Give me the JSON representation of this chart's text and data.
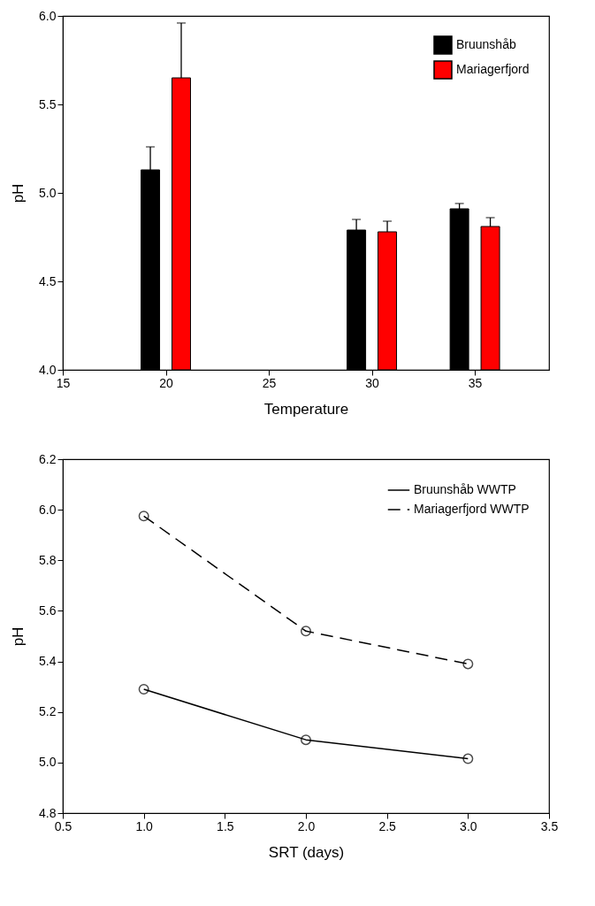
{
  "chart_data": [
    {
      "type": "bar",
      "xlabel": "Temperature",
      "ylabel": "pH",
      "xlim": [
        15,
        38.6
      ],
      "xticks": [
        15,
        20,
        25,
        30,
        35
      ],
      "ylim": [
        4,
        6
      ],
      "yticks": [
        {
          "value": 4,
          "label": "4.0"
        },
        4.5,
        {
          "value": 5,
          "label": "5.0"
        },
        5.5,
        {
          "value": 6,
          "label": "6.0"
        }
      ],
      "grid": false,
      "legend": "top right",
      "series": [
        {
          "name": "Bruunshåb",
          "color": "#000000",
          "x": [
            19.25,
            29.25,
            34.25
          ],
          "values": [
            5.13,
            4.79,
            4.91
          ],
          "errors": [
            [
              5.13,
              5.26
            ],
            [
              4.79,
              4.85
            ],
            [
              4.91,
              4.94
            ]
          ]
        },
        {
          "name": "Mariagerfjord",
          "color": "#ff0000",
          "x": [
            20.75,
            30.75,
            35.75
          ],
          "values": [
            5.65,
            4.78,
            4.81
          ],
          "errors": [
            [
              5.65,
              5.96
            ],
            [
              4.78,
              4.84
            ],
            [
              4.81,
              4.86
            ]
          ]
        }
      ]
    },
    {
      "type": "line",
      "xlabel": "SRT (days)",
      "ylabel": "pH",
      "x": [
        1,
        2,
        3
      ],
      "xlim": [
        0.5,
        3.5
      ],
      "xticks": [
        0.5,
        {
          "value": 1,
          "label": "1.0"
        },
        1.5,
        {
          "value": 2,
          "label": "2.0"
        },
        2.5,
        {
          "value": 3,
          "label": "3.0"
        },
        3.5
      ],
      "ylim": [
        4.8,
        6.2
      ],
      "yticks": [
        4.8,
        {
          "value": 5,
          "label": "5.0"
        },
        5.2,
        5.4,
        5.6,
        5.8,
        {
          "value": 6,
          "label": "6.0"
        },
        6.2
      ],
      "grid": false,
      "legend": "top right",
      "marker": "circle",
      "series": [
        {
          "name": "Bruunshåb WWTP",
          "color": "#000000",
          "line_style": "solid",
          "values": [
            5.29,
            5.09,
            5.015
          ]
        },
        {
          "name": "Mariagerfjord WWTP",
          "color": "#000000",
          "line_style": "dashed",
          "values": [
            5.975,
            5.52,
            5.39
          ]
        }
      ]
    }
  ]
}
